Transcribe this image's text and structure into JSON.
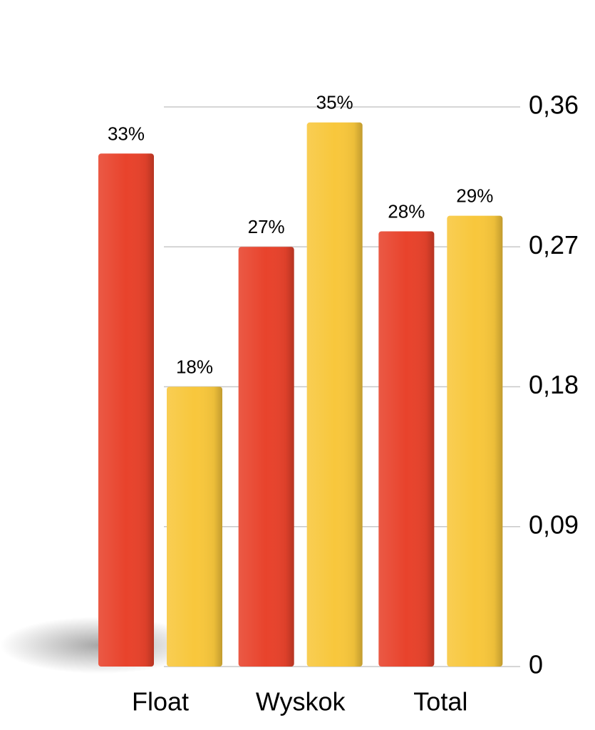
{
  "chart_data": {
    "type": "bar",
    "categories": [
      "Float",
      "Wyskok",
      "Total"
    ],
    "series": [
      {
        "color": "#e8432c",
        "values": [
          0.33,
          0.27,
          0.28
        ],
        "value_labels": [
          "33%",
          "27%",
          "28%"
        ]
      },
      {
        "color": "#f8c73c",
        "values": [
          0.18,
          0.35,
          0.29
        ],
        "value_labels": [
          "18%",
          "35%",
          "29%"
        ]
      }
    ],
    "ylim": [
      0,
      0.36
    ],
    "yticks": [
      0,
      {
        "value": 0.09,
        "label": "0,09"
      },
      {
        "value": 0.18,
        "label": "0,18"
      },
      {
        "value": 0.27,
        "label": "0,27"
      },
      {
        "value": 0.36,
        "label": "0,36"
      }
    ],
    "grid": true
  }
}
